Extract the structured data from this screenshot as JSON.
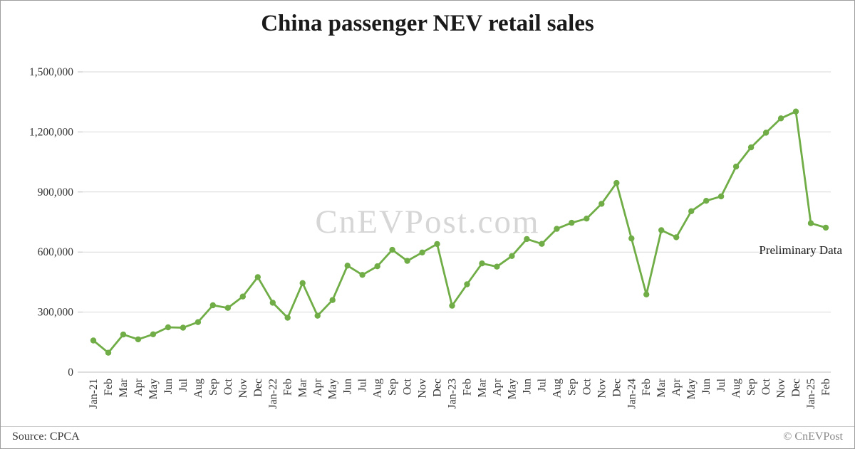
{
  "title": "China passenger NEV retail sales",
  "watermark": "CnEVPost.com",
  "annotation": "Preliminary Data",
  "footer": {
    "source": "Source: CPCA",
    "credit": "© CnEVPost"
  },
  "colors": {
    "line": "#70ad47",
    "marker": "#70ad47",
    "grid": "#d9d9d9",
    "axis": "#bfbfbf",
    "tick_label": "#333333",
    "watermark": "#c9c9c9"
  },
  "chart_data": {
    "type": "line",
    "title": "China passenger NEV retail sales",
    "xlabel": "",
    "ylabel": "",
    "ylim": [
      0,
      1500000
    ],
    "yticks": [
      0,
      300000,
      600000,
      900000,
      1200000,
      1500000
    ],
    "grid": true,
    "legend": false,
    "x": [
      "Jan-21",
      "Feb",
      "Mar",
      "Apr",
      "May",
      "Jun",
      "Jul",
      "Aug",
      "Sep",
      "Oct",
      "Nov",
      "Dec",
      "Jan-22",
      "Feb",
      "Mar",
      "Apr",
      "May",
      "Jun",
      "Jul",
      "Aug",
      "Sep",
      "Oct",
      "Nov",
      "Dec",
      "Jan-23",
      "Feb",
      "Mar",
      "Apr",
      "May",
      "Jun",
      "Jul",
      "Aug",
      "Sep",
      "Oct",
      "Nov",
      "Dec",
      "Jan-24",
      "Feb",
      "Mar",
      "Apr",
      "May",
      "Jun",
      "Jul",
      "Aug",
      "Sep",
      "Oct",
      "Nov",
      "Dec",
      "Jan-25",
      "Feb"
    ],
    "series": [
      {
        "name": "China passenger NEV retail sales (units)",
        "values": [
          158000,
          97000,
          188000,
          164000,
          189000,
          224000,
          222000,
          250000,
          334000,
          321000,
          378000,
          475000,
          347000,
          272000,
          445000,
          282000,
          360000,
          532000,
          486000,
          529000,
          611000,
          556000,
          598000,
          640000,
          332000,
          439000,
          543000,
          527000,
          580000,
          665000,
          641000,
          716000,
          746000,
          767000,
          841000,
          945000,
          668000,
          388000,
          709000,
          674000,
          804000,
          856000,
          878000,
          1027000,
          1123000,
          1196000,
          1268000,
          1302000,
          744000,
          722000
        ]
      }
    ]
  }
}
